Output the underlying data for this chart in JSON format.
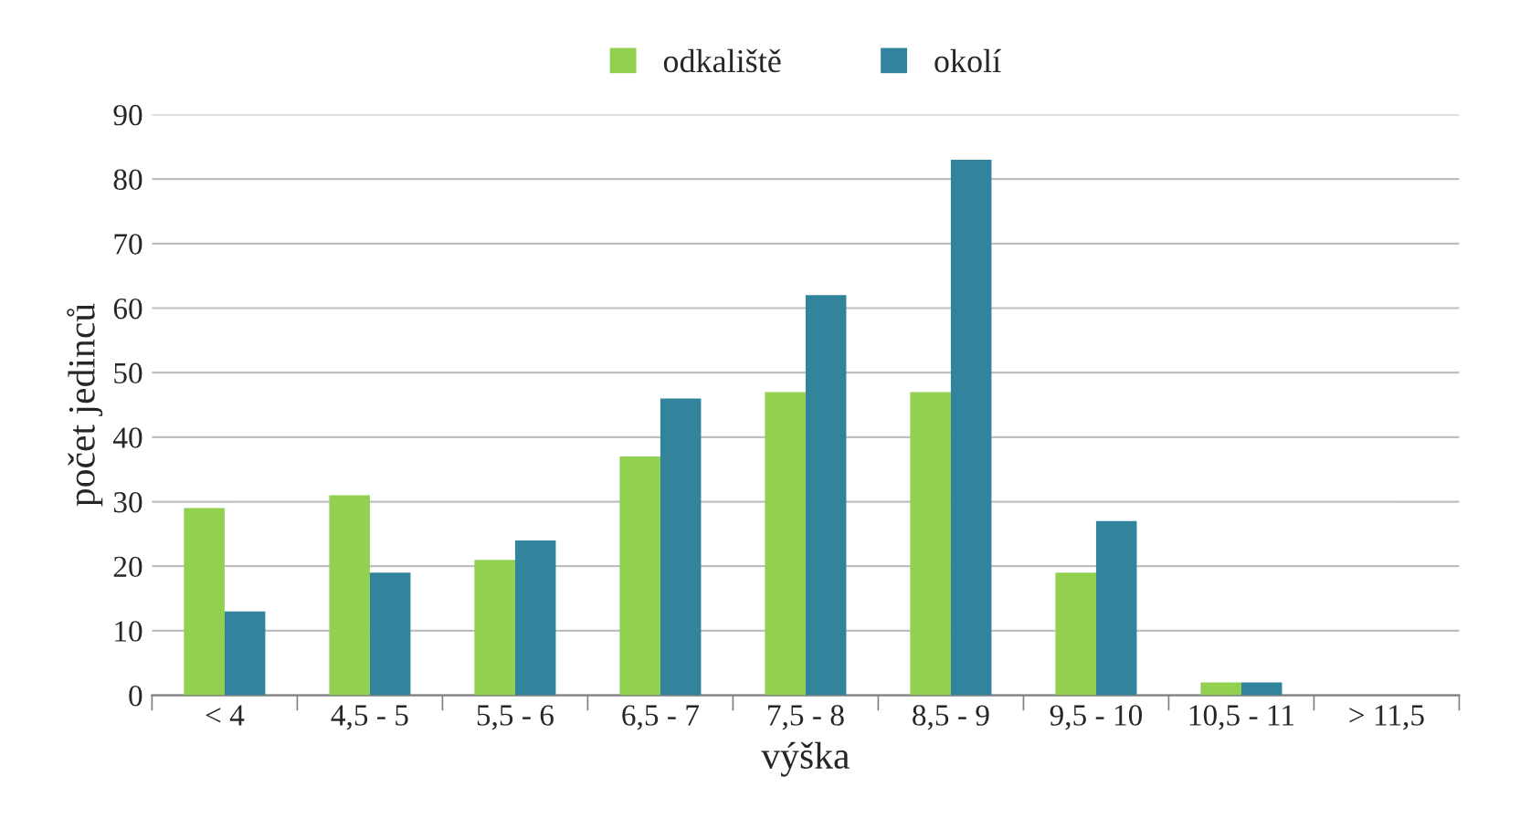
{
  "chart_data": {
    "type": "bar",
    "xlabel": "výška",
    "ylabel": "počet jedinců",
    "categories": [
      "< 4",
      "4,5 - 5",
      "5,5 - 6",
      "6,5 - 7",
      "7,5 - 8",
      "8,5 - 9",
      "9,5 - 10",
      "10,5 - 11",
      "> 11,5"
    ],
    "series": [
      {
        "name": "odkaliště",
        "color": "#92d050",
        "values": [
          29,
          31,
          21,
          37,
          47,
          47,
          19,
          2,
          0
        ]
      },
      {
        "name": "okolí",
        "color": "#31849b",
        "values": [
          13,
          19,
          24,
          46,
          62,
          83,
          27,
          2,
          0
        ]
      }
    ],
    "ylim": [
      0,
      90
    ],
    "yticks": [
      0,
      10,
      20,
      30,
      40,
      50,
      60,
      70,
      80,
      90
    ],
    "grid": "y",
    "legend": "top"
  }
}
